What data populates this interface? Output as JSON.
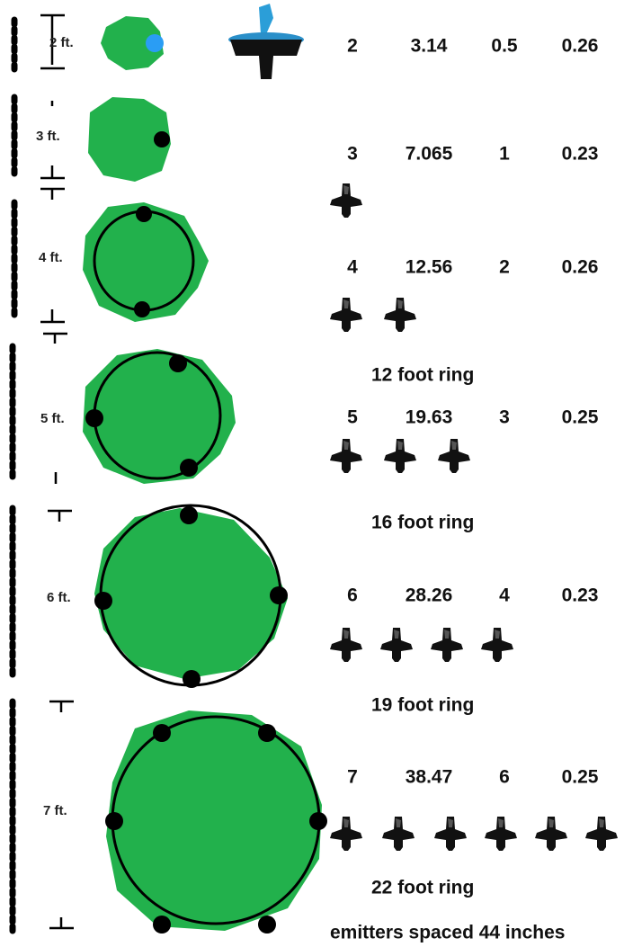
{
  "rows": [
    {
      "size_label": "2 ft.",
      "diameter": "2",
      "area": "3.14",
      "emitters": "0.5",
      "ratio": "0.26"
    },
    {
      "size_label": "3 ft.",
      "diameter": "3",
      "area": "7.065",
      "emitters": "1",
      "ratio": "0.23"
    },
    {
      "size_label": "4 ft.",
      "diameter": "4",
      "area": "12.56",
      "emitters": "2",
      "ratio": "0.26"
    },
    {
      "size_label": "5 ft.",
      "diameter": "5",
      "area": "19.63",
      "emitters": "3",
      "ratio": "0.25"
    },
    {
      "size_label": "6 ft.",
      "diameter": "6",
      "area": "28.26",
      "emitters": "4",
      "ratio": "0.23"
    },
    {
      "size_label": "7 ft.",
      "diameter": "7",
      "area": "38.47",
      "emitters": "6",
      "ratio": "0.25"
    }
  ],
  "ring_labels": [
    "12 foot ring",
    "16 foot ring",
    "19 foot ring",
    "22 foot ring"
  ],
  "footer": "emitters spaced 44 inches"
}
